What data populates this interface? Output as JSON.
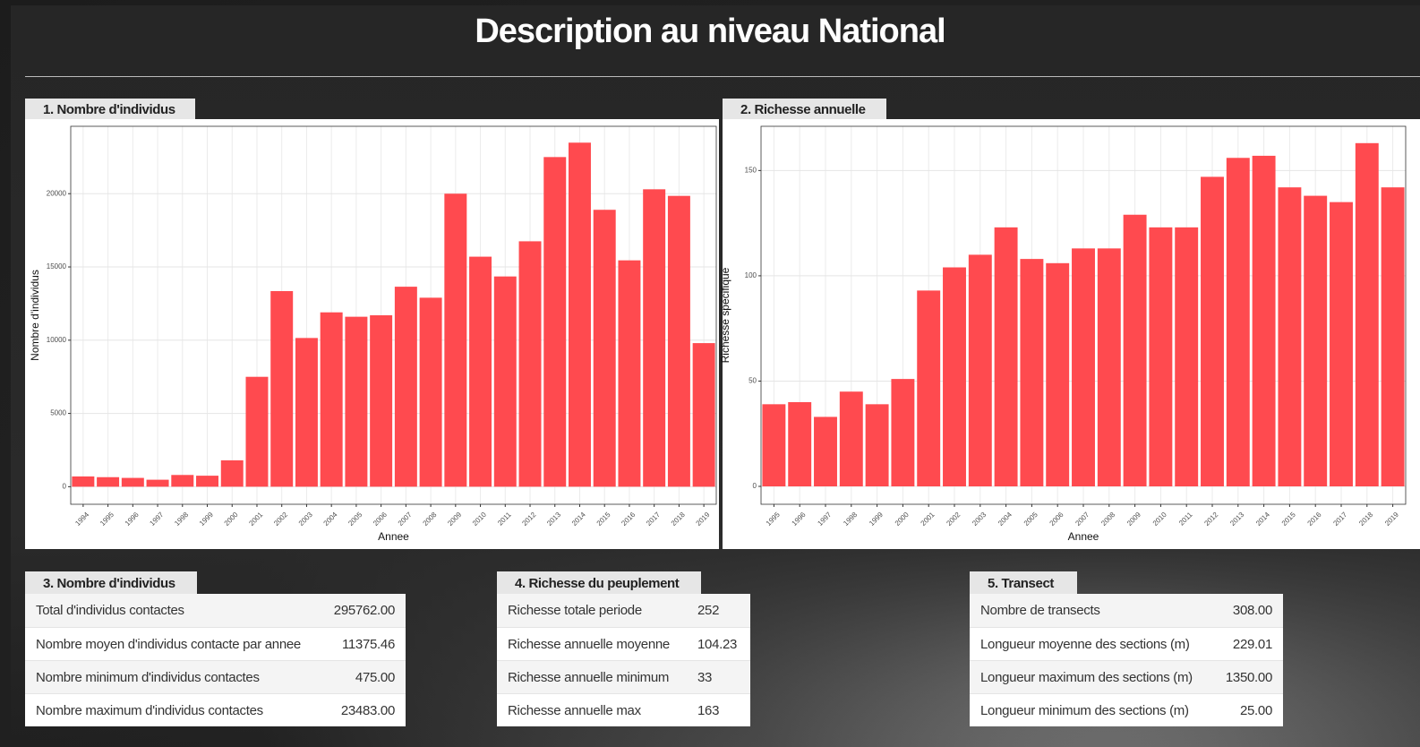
{
  "header": {
    "title": "Description au niveau National"
  },
  "chart_data": [
    {
      "type": "bar",
      "title": "1. Nombre d'individus",
      "x_label": "Annee",
      "y_label": "Nombre d'individus",
      "categories": [
        "1994",
        "1995",
        "1996",
        "1997",
        "1998",
        "1999",
        "2000",
        "2001",
        "2002",
        "2003",
        "2004",
        "2005",
        "2006",
        "2007",
        "2008",
        "2009",
        "2010",
        "2011",
        "2012",
        "2013",
        "2014",
        "2015",
        "2016",
        "2017",
        "2018",
        "2019"
      ],
      "values": [
        700,
        650,
        600,
        475,
        800,
        750,
        1800,
        7500,
        13350,
        10150,
        11900,
        11600,
        11700,
        13650,
        12900,
        20000,
        15700,
        14350,
        16750,
        22500,
        23483,
        18900,
        15450,
        20300,
        19850,
        9800
      ],
      "color": "#ff4a4f",
      "ylim": [
        -1200,
        24600
      ],
      "yticks": [
        0,
        5000,
        10000,
        15000,
        20000
      ],
      "grid": true
    },
    {
      "type": "bar",
      "title": "2. Richesse annuelle",
      "x_label": "Annee",
      "y_label": "Richesse spécifique",
      "categories": [
        "1995",
        "1996",
        "1997",
        "1998",
        "1999",
        "2000",
        "2001",
        "2002",
        "2003",
        "2004",
        "2005",
        "2006",
        "2007",
        "2008",
        "2009",
        "2010",
        "2011",
        "2012",
        "2013",
        "2014",
        "2015",
        "2016",
        "2017",
        "2018",
        "2019"
      ],
      "values": [
        39,
        40,
        33,
        45,
        39,
        51,
        93,
        104,
        110,
        123,
        108,
        106,
        113,
        113,
        129,
        123,
        123,
        147,
        156,
        157,
        142,
        138,
        135,
        163,
        142
      ],
      "color": "#ff4a4f",
      "ylim": [
        -8.5,
        171
      ],
      "yticks": [
        0,
        50,
        100,
        150
      ],
      "grid": true
    }
  ],
  "tables": [
    {
      "title": "3. Nombre d'individus",
      "rows": [
        [
          "Total d'individus contactes",
          "295762.00"
        ],
        [
          "Nombre moyen d'individus contacte par annee",
          "11375.46"
        ],
        [
          "Nombre minimum d'individus contactes",
          "475.00"
        ],
        [
          "Nombre maximum d'individus contactes",
          "23483.00"
        ]
      ]
    },
    {
      "title": "4. Richesse du peuplement",
      "rows": [
        [
          "Richesse totale periode",
          "252"
        ],
        [
          "Richesse annuelle moyenne",
          "104.23"
        ],
        [
          "Richesse annuelle minimum",
          "33"
        ],
        [
          "Richesse annuelle max",
          "163"
        ]
      ]
    },
    {
      "title": "5. Transect",
      "rows": [
        [
          "Nombre de transects",
          "308.00"
        ],
        [
          "Longueur moyenne des sections (m)",
          "229.01"
        ],
        [
          "Longueur maximum des sections (m)",
          "1350.00"
        ],
        [
          "Longueur minimum des sections (m)",
          "25.00"
        ]
      ]
    }
  ]
}
